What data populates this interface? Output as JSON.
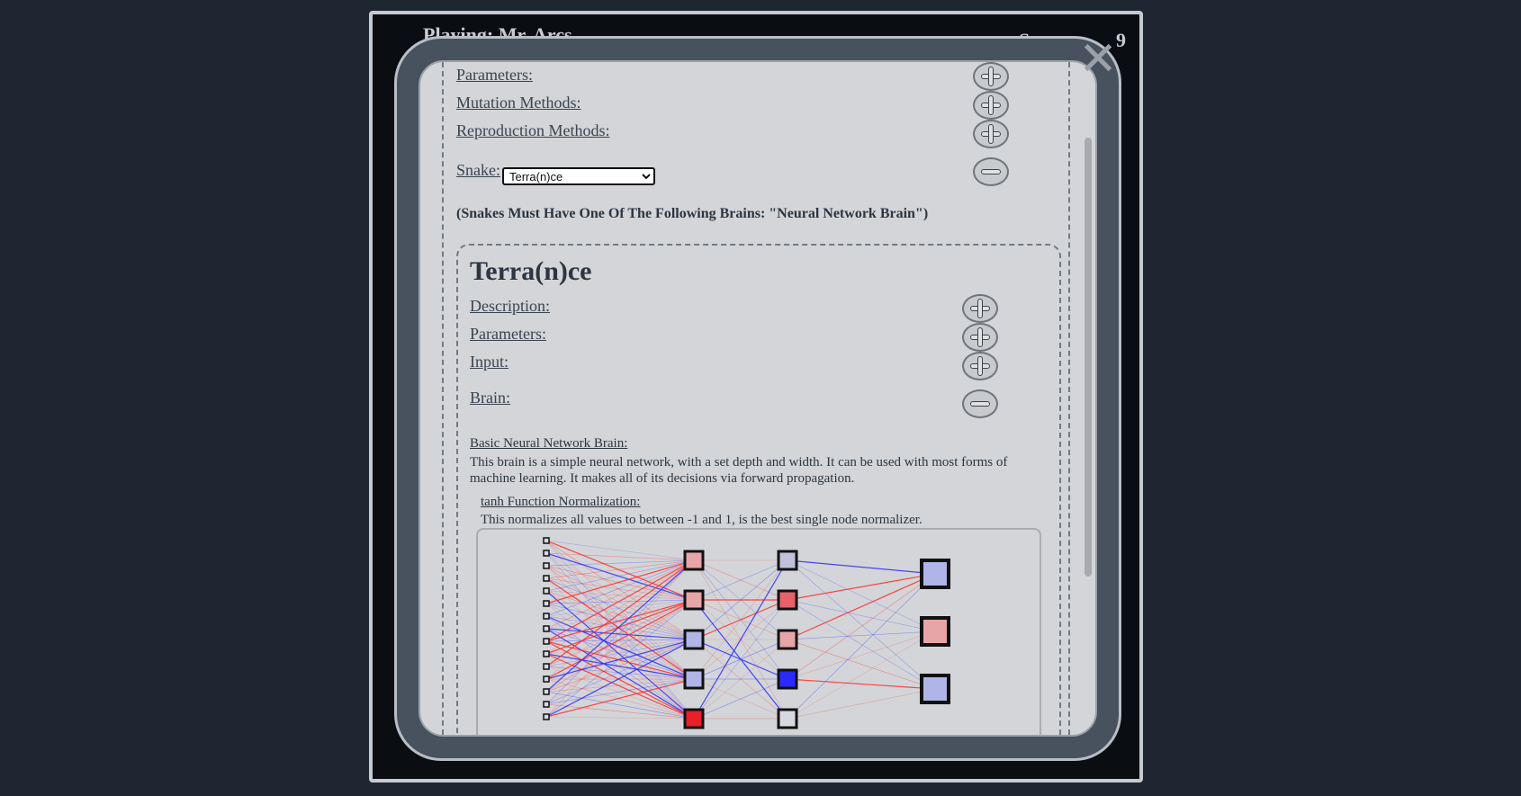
{
  "game": {
    "title": "Playing: Mr. Arcs",
    "score_label": "Score:",
    "score_value": "9"
  },
  "modal": {
    "close_glyph": "✕",
    "links": {
      "parameters": "Parameters:",
      "mutation_methods": "Mutation Methods:",
      "reproduction_methods": "Reproduction Methods:",
      "snake": "Snake:"
    },
    "snake_select": {
      "selected": "Terra(n)ce"
    },
    "note": "(Snakes Must Have One Of The Following Brains: \"Neural Network Brain\")",
    "snake_panel": {
      "title": "Terra(n)ce",
      "description_label": "Description:",
      "parameters_label": "Parameters:",
      "input_label": "Input:",
      "brain_label": "Brain:",
      "brain_name": "Basic Neural Network Brain:",
      "brain_description": "This brain is a simple neural network, with a set depth and width. It can be used with most forms of machine learning. It makes all of its decisions via forward propagation.",
      "normalization_name": "tanh Function Normalization:",
      "normalization_description": "This normalizes all values to between -1 and 1, is the best single node normalizer."
    }
  },
  "colors": {
    "positive": "#ff2a2a",
    "negative": "#2a2aff",
    "background": "#1e2632"
  },
  "icons": [
    "close-icon",
    "plus-icon",
    "minus-icon"
  ],
  "network": {
    "layer1_colors": [
      "#e8a5a8",
      "#e8a5a8",
      "#b0b4e6",
      "#b0b4e6",
      "#e8202a"
    ],
    "layer2_colors": [
      "#c0c0dc",
      "#e8606a",
      "#e8a5a8",
      "#2a2aff",
      "#d8d8e0"
    ],
    "output_colors": [
      "#b0b4e6",
      "#e8a5a8",
      "#b0b4e6"
    ]
  }
}
